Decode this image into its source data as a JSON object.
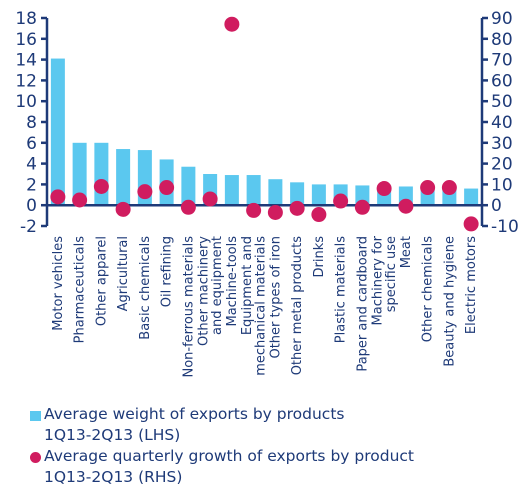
{
  "chart_data": {
    "type": "bar",
    "categories": [
      "Motor vehicles",
      "Pharmaceuticals",
      "Other apparel",
      "Agricultural",
      "Basic chemicals",
      "Oil refining",
      "Non-ferrous materials",
      "Other machinery and equipment",
      "Machine-tools",
      "Equipment and mechanical materials",
      "Other types of iron",
      "Other metal products",
      "Drinks",
      "Plastic materials",
      "Paper and cardboard",
      "Machinery for specific use",
      "Meat",
      "Other chemicals",
      "Beauty and hygiene",
      "Electric motors"
    ],
    "series": [
      {
        "name": "Average weight of exports by products 1Q13-2Q13 (LHS)",
        "type": "bar",
        "axis": "left",
        "color": "#5bc8ef",
        "values": [
          14.1,
          6.0,
          6.0,
          5.4,
          5.3,
          4.4,
          3.7,
          3.0,
          2.9,
          2.9,
          2.5,
          2.2,
          2.0,
          2.0,
          1.9,
          1.9,
          1.8,
          1.7,
          1.7,
          1.6
        ]
      },
      {
        "name": "Average quarterly growth of exports by product 1Q13-2Q13 (RHS)",
        "type": "scatter",
        "axis": "right",
        "color": "#d01c5f",
        "values": [
          4,
          2.5,
          9,
          -2,
          6.5,
          8.5,
          -1,
          3,
          87,
          -2.5,
          -3.5,
          -1.5,
          -4.5,
          2,
          -1,
          8,
          -0.5,
          8.5,
          8.5,
          -9
        ]
      }
    ],
    "ylim_left": [
      -2,
      18
    ],
    "yticks_left": [
      "-2",
      "0",
      "2",
      "4",
      "6",
      "8",
      "10",
      "12",
      "14",
      "16",
      "18"
    ],
    "ylim_right": [
      -10,
      90
    ],
    "yticks_right": [
      "-10",
      "0",
      "10",
      "20",
      "30",
      "40",
      "50",
      "60",
      "70",
      "80",
      "90"
    ],
    "legend_position": "bottom-left",
    "grid": false,
    "axis_color": "#1e3a78"
  },
  "legend": {
    "bar_label": "Average weight of exports by products\n1Q13-2Q13 (LHS)",
    "dot_label": "Average quarterly growth of exports by product\n1Q13-2Q13 (RHS)"
  }
}
